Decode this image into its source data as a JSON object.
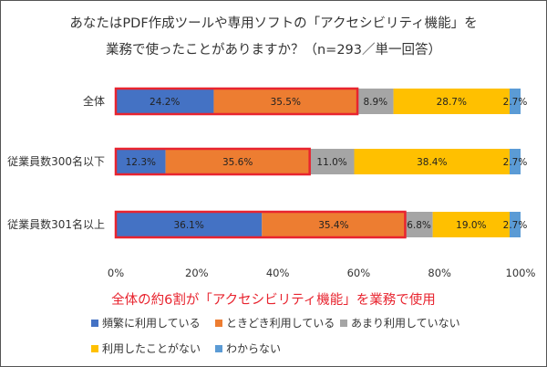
{
  "title_line1": "あなたはPDF作成ツールや専用ソフトの「アクセシビリティ機能」を",
  "title_line2": "業務で使ったことがありますか？（n=293／単一回答）",
  "highlight_text": "全体の約6割が「アクセシビリティ機能」を業務で使用",
  "chart_data": {
    "type": "bar",
    "orientation": "horizontal",
    "stacked": true,
    "categories": [
      "全体",
      "従業員数300名以下",
      "従業員数301名以上"
    ],
    "series": [
      {
        "name": "頻繁に利用している",
        "color": "#4472c4",
        "values": [
          24.2,
          12.3,
          36.1
        ]
      },
      {
        "name": "ときどき利用している",
        "color": "#ed7d31",
        "values": [
          35.5,
          35.6,
          35.4
        ]
      },
      {
        "name": "あまり利用していない",
        "color": "#a5a5a5",
        "values": [
          8.9,
          11.0,
          6.8
        ]
      },
      {
        "name": "利用したことがない",
        "color": "#ffc000",
        "values": [
          28.7,
          38.4,
          19.0
        ]
      },
      {
        "name": "わからない",
        "color": "#5b9bd5",
        "values": [
          2.7,
          2.7,
          2.7
        ]
      }
    ],
    "xlim": [
      0,
      100
    ],
    "xticks": [
      "0%",
      "20%",
      "40%",
      "60%",
      "80%",
      "100%"
    ],
    "grid": false,
    "legend_position": "bottom",
    "highlight_box_color": "#e8242f",
    "highlight_box_series": [
      "頻繁に利用している",
      "ときどき利用している"
    ]
  }
}
